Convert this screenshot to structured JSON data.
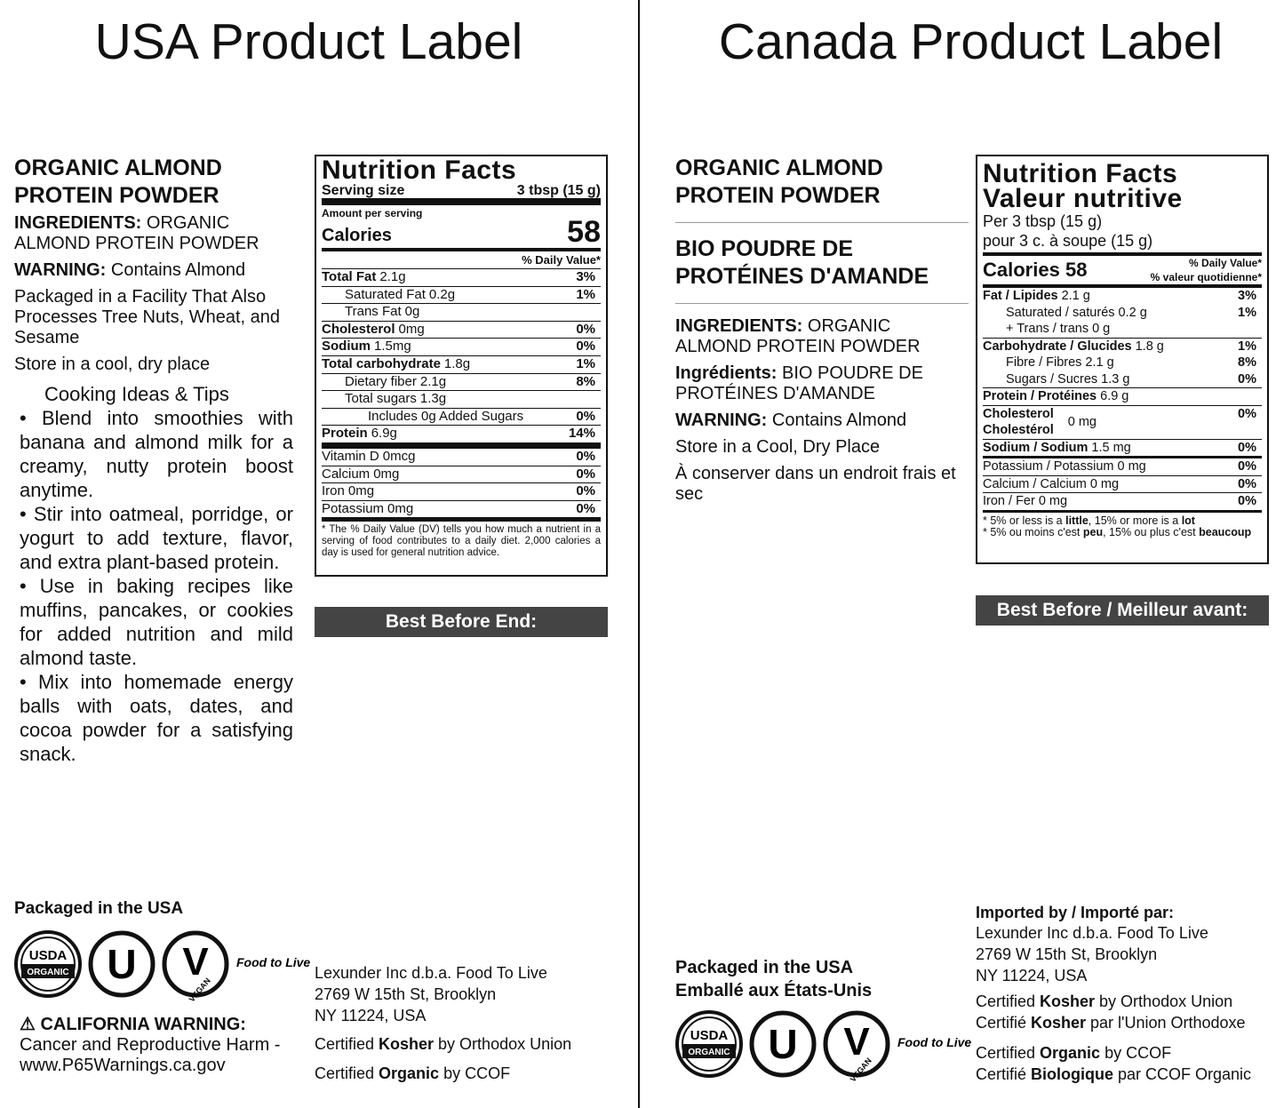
{
  "usa": {
    "title": "USA Product Label",
    "product_name": "ORGANIC ALMOND PROTEIN POWDER",
    "ingredients": {
      "label": "INGREDIENTS:",
      "text": "ORGANIC ALMOND PROTEIN POWDER"
    },
    "warning": {
      "label": "WARNING:",
      "text": "Contains Almond"
    },
    "facility": "Packaged in a Facility That Also Processes Tree Nuts, Wheat, and Sesame",
    "storage": "Store in a cool, dry place",
    "tips_title": "Cooking Ideas & Tips",
    "tips": [
      "• Blend into smoothies with banana and almond milk for a creamy, nutty protein boost anytime.",
      "• Stir into oatmeal, porridge, or yogurt to add texture, flavor, and extra plant-based protein.",
      "• Use in baking recipes like muffins, pancakes, or cookies for added nutrition and mild almond taste.",
      "• Mix into homemade energy balls with oats, dates, and cocoa powder for a satisfying snack."
    ],
    "nutrition": {
      "title": "Nutrition Facts",
      "serving_label": "Serving size",
      "serving_value": "3 tbsp (15 g)",
      "amount_per_serving": "Amount per serving",
      "calories_label": "Calories",
      "calories": 58,
      "dv_header": "% Daily Value*",
      "rows": [
        {
          "label": "Total Fat",
          "amount": "2.1g",
          "dv": "3%"
        },
        {
          "label": "Saturated Fat",
          "amount": "0.2g",
          "dv": "1%"
        },
        {
          "label": "Trans Fat",
          "amount": "0g"
        },
        {
          "label": "Cholesterol",
          "amount": "0mg",
          "dv": "0%"
        },
        {
          "label": "Sodium",
          "amount": "1.5mg",
          "dv": "0%"
        },
        {
          "label": "Total carbohydrate",
          "amount": "1.8g",
          "dv": "1%"
        },
        {
          "label": "Dietary fiber",
          "amount": "2.1g",
          "dv": "8%"
        },
        {
          "label": "Total sugars",
          "amount": "1.3g"
        },
        {
          "label": "Includes 0g Added Sugars",
          "dv": "0%"
        },
        {
          "label": "Protein",
          "amount": "6.9g",
          "dv": "14%"
        },
        {
          "label": "Vitamin D",
          "amount": "0mcg",
          "dv": "0%"
        },
        {
          "label": "Calcium",
          "amount": "0mg",
          "dv": "0%"
        },
        {
          "label": "Iron",
          "amount": "0mg",
          "dv": "0%"
        },
        {
          "label": "Potassium",
          "amount": "0mg",
          "dv": "0%"
        }
      ],
      "footnote": "* The % Daily Value (DV) tells you how much a nutrient in a serving of food contributes to a daily diet. 2,000 calories a day is used for general nutrition advice."
    },
    "best_before": "Best Before End:",
    "packaged_in": "Packaged in the USA",
    "logos": {
      "usda": "USDA",
      "organic": "ORGANIC",
      "kosher": "U",
      "vegan_mark": "V",
      "vegan": "VEGAN",
      "brand": "Food to Live"
    },
    "california_warning": {
      "label": "⚠ CALIFORNIA WARNING:",
      "text": "Cancer and Reproductive Harm - www.P65Warnings.ca.gov"
    },
    "address": [
      "Lexunder Inc d.b.a. Food To Live",
      "2769 W 15th St, Brooklyn",
      "NY 11224, USA"
    ],
    "kosher_cert": [
      "Certified ",
      "Kosher",
      " by Orthodox Union"
    ],
    "organic_cert": [
      "Certified ",
      "Organic",
      " by CCOF"
    ]
  },
  "canada": {
    "title": "Canada Product Label",
    "product_name": "ORGANIC ALMOND PROTEIN POWDER",
    "product_name_fr": "BIO POUDRE DE PROTÉINES D'AMANDE",
    "ingredients": {
      "label": "INGREDIENTS:",
      "text": "ORGANIC ALMOND PROTEIN POWDER"
    },
    "ingredients_fr": {
      "label": "Ingrédients:",
      "text": "BIO POUDRE DE PROTÉINES D'AMANDE"
    },
    "warning": {
      "label": "WARNING:",
      "text": "Contains Almond"
    },
    "storage": "Store in a Cool, Dry Place",
    "storage_fr": "À conserver dans un endroit frais et sec",
    "nutrition": {
      "title": "Nutrition Facts",
      "title_fr": "Valeur nutritive",
      "serving": "Per 3 tbsp (15 g)",
      "serving_fr": "pour 3 c. à soupe (15 g)",
      "calories_label": "Calories",
      "calories": 58,
      "dv_header": "% Daily Value*",
      "dv_header_fr": "% valeur quotidienne*",
      "rows": [
        {
          "label": "Fat / Lipides",
          "amount": "2.1 g",
          "dv": "3%"
        },
        {
          "label": "Saturated / saturés",
          "amount": "0.2 g",
          "dv": "1%"
        },
        {
          "label": "+ Trans / trans",
          "amount": "0 g"
        },
        {
          "label": "Carbohydrate / Glucides",
          "amount": "1.8 g",
          "dv": "1%"
        },
        {
          "label": "Fibre / Fibres",
          "amount": "2.1 g",
          "dv": "8%"
        },
        {
          "label": "Sugars / Sucres",
          "amount": "1.3 g",
          "dv": "0%"
        },
        {
          "label": "Protein / Protéines",
          "amount": "6.9 g"
        },
        {
          "label": "Cholesterol\nCholestérol",
          "amount": "0 mg",
          "dv": "0%"
        },
        {
          "label": "Sodium / Sodium",
          "amount": "1.5 mg",
          "dv": "0%"
        },
        {
          "label": "Potassium / Potassium",
          "amount": "0 mg",
          "dv": "0%"
        },
        {
          "label": "Calcium / Calcium",
          "amount": "0 mg",
          "dv": "0%"
        },
        {
          "label": "Iron / Fer",
          "amount": "0 mg",
          "dv": "0%"
        }
      ],
      "footnote": [
        "* 5% or less is a ",
        "little",
        ", 15% or more is a ",
        "lot"
      ],
      "footnote_fr": [
        "* 5% ou moins c'est ",
        "peu",
        ", 15% ou plus c'est ",
        "beaucoup"
      ]
    },
    "best_before": "Best Before / Meilleur avant:",
    "imported_by": "Imported by / Importé par:",
    "address": [
      "Lexunder Inc d.b.a. Food To Live",
      "2769 W 15th St, Brooklyn",
      "NY 11224, USA"
    ],
    "kosher_cert": [
      "Certified ",
      "Kosher",
      " by Orthodox Union"
    ],
    "kosher_cert_fr": [
      "Certifié ",
      "Kosher",
      " par l'Union Orthodoxe"
    ],
    "organic_cert": [
      "Certified ",
      "Organic",
      " by CCOF"
    ],
    "organic_cert_fr": [
      "Certifié ",
      "Biologique",
      " par CCOF Organic"
    ],
    "packaged_in": "Packaged in the USA",
    "packaged_in_fr": "Emballé aux États-Unis",
    "logos": {
      "usda": "USDA",
      "organic": "ORGANIC",
      "kosher": "U",
      "vegan_mark": "V",
      "vegan": "VEGAN",
      "brand": "Food to Live"
    }
  }
}
